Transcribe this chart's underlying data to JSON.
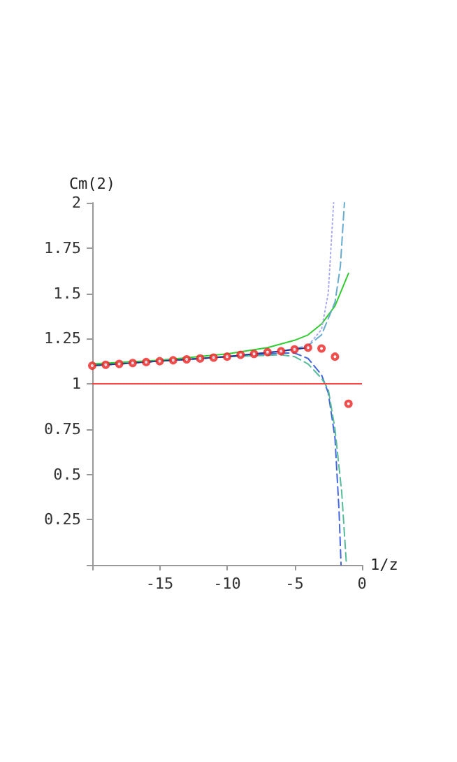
{
  "chart_data": {
    "type": "line",
    "xlabel": "1/z",
    "ylabel": "Cm(2)",
    "xlim": [
      -20,
      0
    ],
    "xticks": [
      {
        "value": -20,
        "label": null
      },
      -15,
      -10,
      -5,
      0
    ],
    "ylim": [
      0,
      2
    ],
    "yticks": [
      {
        "value": 0,
        "label": null
      },
      0.25,
      0.5,
      0.75,
      1,
      1.25,
      1.5,
      1.75,
      2
    ],
    "grid": false,
    "ref_lines": [
      {
        "axis": "y",
        "value": 1,
        "color": "#ff4444",
        "line_style": "solid"
      }
    ],
    "series": [
      {
        "color": "#33cc33",
        "line_style": "solid",
        "marker": "none",
        "x": [
          -20,
          -15,
          -10,
          -7,
          -5,
          -4,
          -3,
          -2,
          -1.5,
          -1
        ],
        "values": [
          1.11,
          1.13,
          1.165,
          1.2,
          1.24,
          1.27,
          1.33,
          1.43,
          1.52,
          1.61
        ]
      },
      {
        "color": "#aaaaee",
        "line_style": "dotted",
        "marker": "none",
        "x": [
          -20,
          -15,
          -10,
          -6,
          -4,
          -3,
          -2.5,
          -2.1
        ],
        "values": [
          1.1,
          1.125,
          1.15,
          1.18,
          1.21,
          1.3,
          1.5,
          2
        ]
      },
      {
        "color": "#66aacc",
        "line_style": "dashed",
        "marker": "none",
        "x": [
          -20,
          -15,
          -10,
          -6,
          -4,
          -3,
          -2,
          -1.6,
          -1.3
        ],
        "values": [
          1.1,
          1.125,
          1.15,
          1.18,
          1.21,
          1.27,
          1.45,
          1.65,
          2
        ]
      },
      {
        "color": "#4466dd",
        "line_style": "dashed",
        "marker": "none",
        "x": [
          -20,
          -15,
          -10,
          -6,
          -5,
          -4,
          -3,
          -2.5,
          -2,
          -1.7,
          -1.55
        ],
        "values": [
          1.1,
          1.125,
          1.15,
          1.17,
          1.17,
          1.14,
          1.05,
          0.95,
          0.7,
          0.3,
          0
        ]
      },
      {
        "color": "#55bb99",
        "line_style": "dashed",
        "marker": "none",
        "x": [
          -20,
          -15,
          -10,
          -6,
          -5,
          -4,
          -3,
          -2.5,
          -2,
          -1.5,
          -1.15
        ],
        "values": [
          1.1,
          1.125,
          1.15,
          1.16,
          1.15,
          1.11,
          1.03,
          0.97,
          0.75,
          0.4,
          0
        ]
      },
      {
        "color": "#223388",
        "line_style": "solid",
        "marker": "none",
        "x": [
          -20,
          -15,
          -10,
          -6,
          -4
        ],
        "values": [
          1.1,
          1.125,
          1.15,
          1.18,
          1.2
        ]
      },
      {
        "type": "scatter",
        "color": "#ee2222",
        "marker": "circle",
        "x": [
          -20,
          -19,
          -18,
          -17,
          -16,
          -15,
          -14,
          -13,
          -12,
          -11,
          -10,
          -9,
          -8,
          -7,
          -6,
          -5,
          -4,
          -3,
          -2,
          -1
        ],
        "values": [
          1.1,
          1.105,
          1.11,
          1.115,
          1.12,
          1.125,
          1.13,
          1.135,
          1.14,
          1.145,
          1.15,
          1.16,
          1.165,
          1.175,
          1.18,
          1.19,
          1.2,
          1.195,
          1.15,
          0.89
        ]
      }
    ]
  }
}
